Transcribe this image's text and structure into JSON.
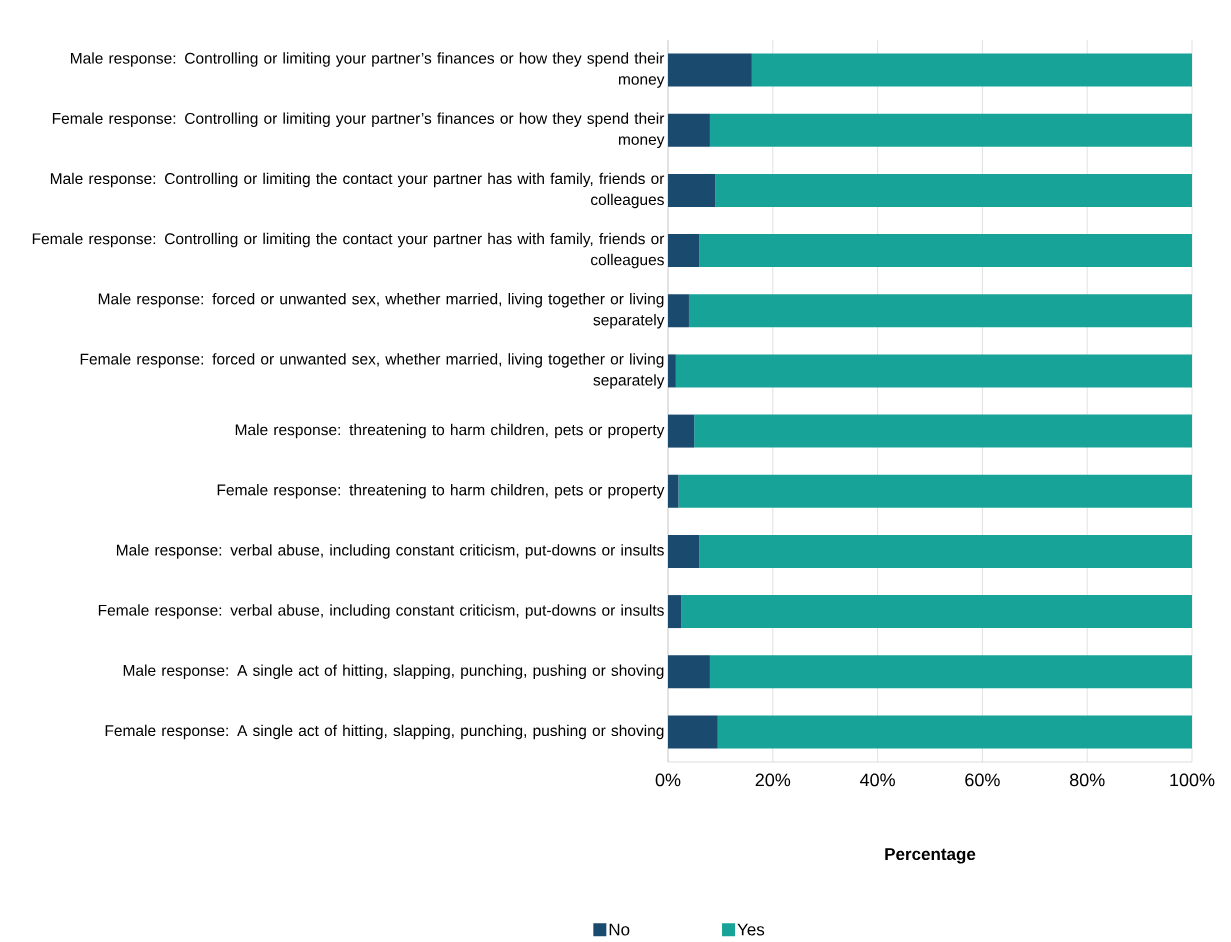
{
  "chart_data": {
    "type": "bar",
    "orientation": "horizontal",
    "stacked": true,
    "xlabel": "Percentage",
    "categories": [
      "Male response: Controlling or limiting your partner’s finances or how they spend their money",
      "Female response: Controlling or limiting your partner’s finances or how they spend their money",
      "Male response: Controlling or limiting the contact your partner has with family, friends or colleagues",
      "Female response: Controlling or limiting the contact your partner has with family, friends or colleagues",
      "Male response: forced or unwanted sex, whether married, living together or living separately",
      "Female response: forced or unwanted sex, whether married, living together or living separately",
      "Male response: threatening to harm children, pets or property",
      "Female response: threatening to harm children, pets or property",
      "Male response: verbal abuse, including constant criticism, put-downs or insults",
      "Female response: verbal abuse, including constant criticism, put-downs or insults",
      "Male response: A single act of hitting, slapping, punching, pushing or shoving",
      "Female response: A single act of hitting, slapping, punching, pushing or shoving"
    ],
    "series": [
      {
        "name": "No",
        "color": "#1a4a6e",
        "values": [
          16,
          8,
          9,
          6,
          4,
          1.5,
          5,
          2,
          6,
          2.5,
          8,
          9.5
        ]
      },
      {
        "name": "Yes",
        "color": "#17a398",
        "values": [
          84,
          92,
          91,
          94,
          96,
          98.5,
          95,
          98,
          94,
          97.5,
          92,
          90.5
        ]
      }
    ],
    "xlim": [
      0,
      100
    ],
    "xticks": [
      {
        "value": 0,
        "label": "0%"
      },
      {
        "value": 20,
        "label": "20%"
      },
      {
        "value": 40,
        "label": "40%"
      },
      {
        "value": 60,
        "label": "60%"
      },
      {
        "value": 80,
        "label": "80%"
      },
      {
        "value": 100,
        "label": "100%"
      }
    ],
    "grid": "x",
    "legend": "bottom"
  }
}
